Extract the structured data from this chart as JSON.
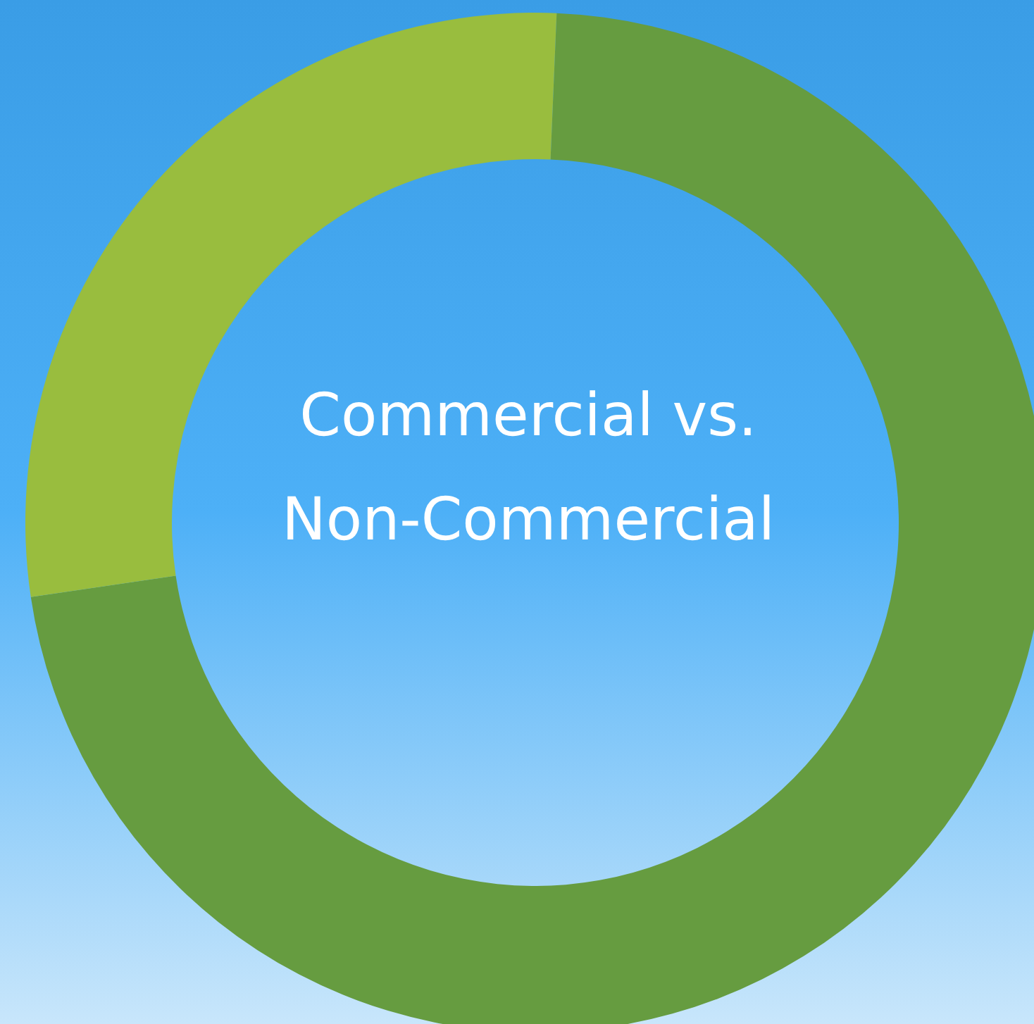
{
  "chart_data": {
    "type": "donut",
    "title": "Commercial vs. Non-Commercial",
    "categories": [
      null,
      null
    ],
    "values": [
      72,
      28
    ],
    "colors": [
      "#669c40",
      "#99bd3e"
    ]
  }
}
